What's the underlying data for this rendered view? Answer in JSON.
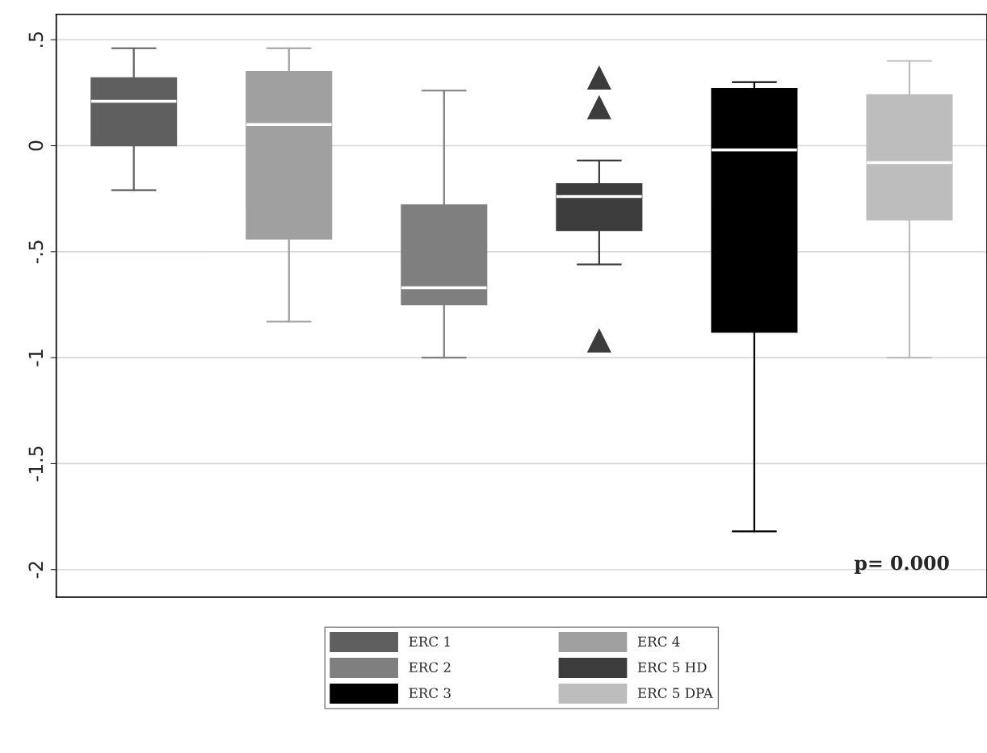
{
  "chart_data": {
    "type": "box",
    "categories": [
      null,
      null,
      null,
      null,
      null,
      null
    ],
    "series": [
      {
        "name": "ERC 1",
        "color": "#5f5f5f",
        "boxes": [
          {
            "low": -0.21,
            "q1": 0.0,
            "median": 0.21,
            "q3": 0.32,
            "high": 0.46
          },
          null,
          null,
          null,
          null,
          null
        ]
      },
      {
        "name": "ERC 4",
        "color": "#a0a0a0",
        "boxes": [
          null,
          {
            "low": -0.83,
            "q1": -0.44,
            "median": 0.1,
            "q3": 0.35,
            "high": 0.46
          },
          null,
          null,
          null,
          null
        ]
      },
      {
        "name": "ERC 2",
        "color": "#7f7f7f",
        "boxes": [
          null,
          null,
          {
            "low": -1.0,
            "q1": -0.75,
            "median": -0.67,
            "q3": -0.28,
            "high": 0.26
          },
          null,
          null,
          null
        ]
      },
      {
        "name": "ERC 5 HD",
        "color": "#3c3c3c",
        "boxes": [
          null,
          null,
          null,
          {
            "low": -0.56,
            "q1": -0.4,
            "median": -0.24,
            "q3": -0.18,
            "high": -0.07,
            "outliers": [
              0.32,
              0.18,
              -0.92
            ]
          },
          null,
          null
        ]
      },
      {
        "name": "ERC 3",
        "color": "#000000",
        "boxes": [
          null,
          null,
          null,
          null,
          {
            "low": -1.82,
            "q1": -0.88,
            "median": -0.02,
            "q3": 0.27,
            "high": 0.3
          },
          null
        ]
      },
      {
        "name": "ERC 5 DPA",
        "color": "#bdbdbd",
        "boxes": [
          null,
          null,
          null,
          null,
          null,
          {
            "low": -1.0,
            "q1": -0.35,
            "median": -0.08,
            "q3": 0.24,
            "high": 0.4
          }
        ]
      }
    ],
    "ylim": [
      -2.13,
      0.62
    ],
    "yticks": [
      {
        "value": 0.5,
        "label": ".5"
      },
      0,
      {
        "value": -0.5,
        "label": "-.5"
      },
      -1,
      -1.5,
      -2
    ],
    "grid": "y",
    "marker": "triangle",
    "legend": "bottom",
    "tick_labels": "y",
    "annotations": [
      "p= 0.000"
    ]
  }
}
